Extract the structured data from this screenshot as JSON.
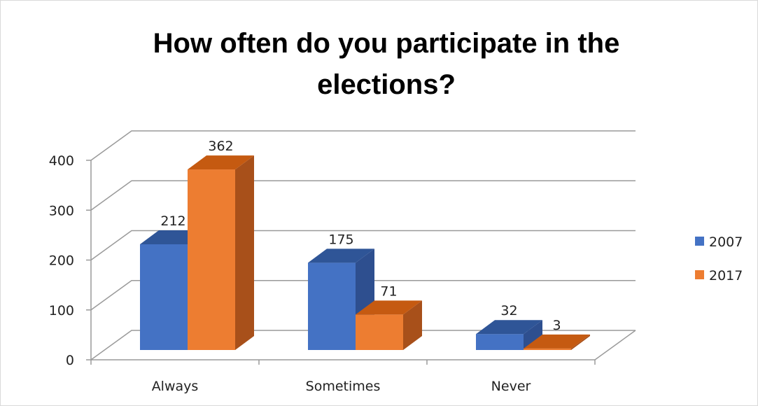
{
  "chart_data": {
    "type": "bar",
    "title": "How often do you participate in the elections?",
    "title_lines": [
      "How often do you participate in the",
      "elections?"
    ],
    "categories": [
      "Always",
      "Sometimes",
      "Never"
    ],
    "series": [
      {
        "name": "2007",
        "values": [
          212,
          175,
          32
        ],
        "color": "#4472c4",
        "top_color": "#2f5597",
        "side_color": "#2e4f8f"
      },
      {
        "name": "2017",
        "values": [
          362,
          71,
          3
        ],
        "color": "#ed7d31",
        "top_color": "#c55a11",
        "side_color": "#a8501a"
      }
    ],
    "y_ticks": [
      0,
      100,
      200,
      300,
      400
    ],
    "ylim": [
      0,
      400
    ],
    "grid": true,
    "legend_position": "right",
    "xlabel": "",
    "ylabel": ""
  }
}
